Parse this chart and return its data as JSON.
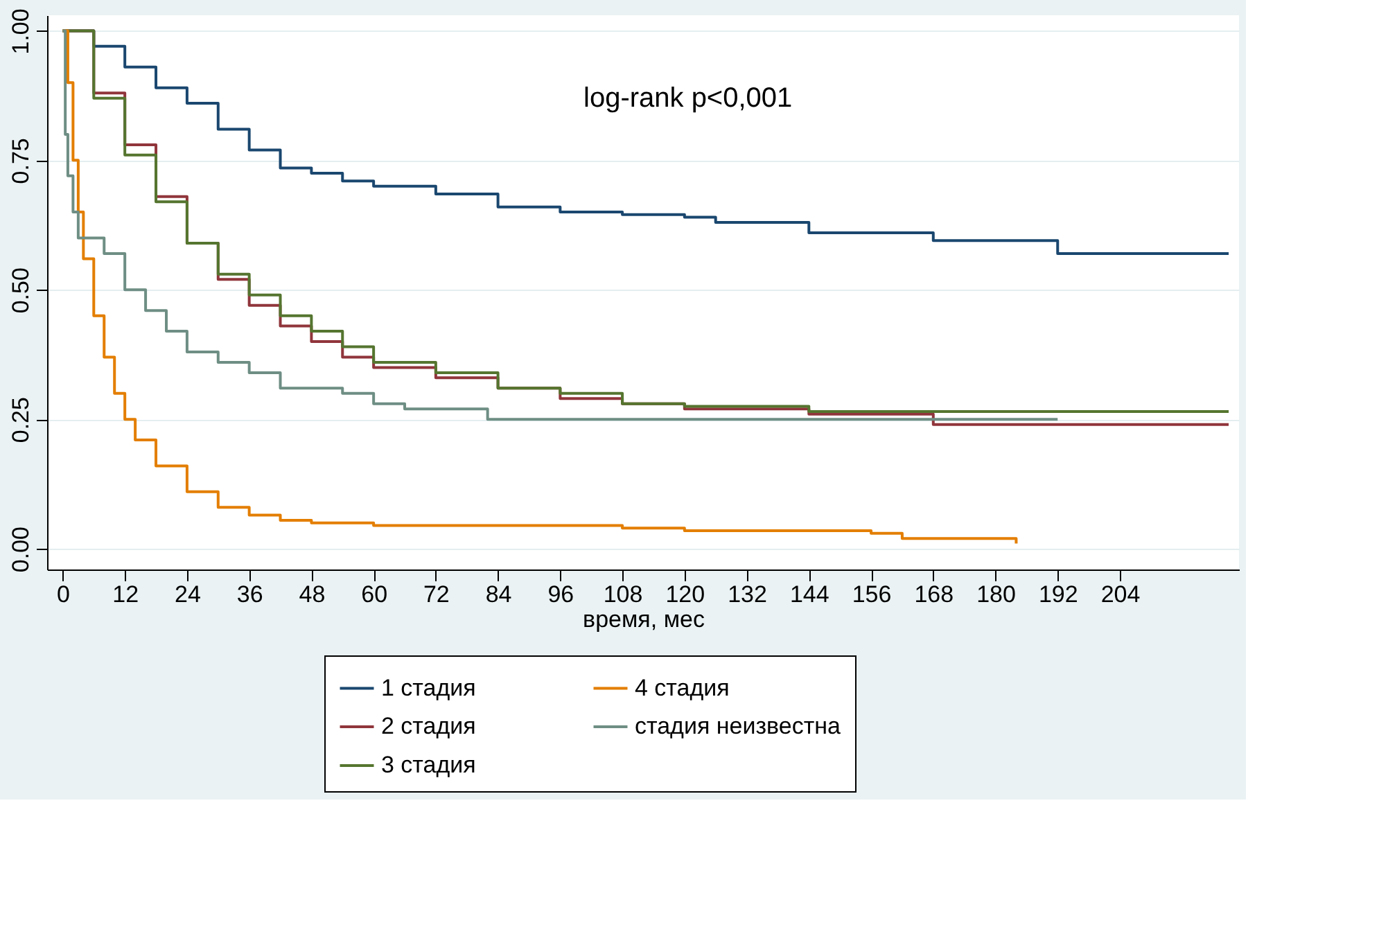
{
  "chart_data": {
    "type": "step",
    "xlabel": "время, мес",
    "xlim": [
      -3,
      227
    ],
    "ylim": [
      -0.04,
      1.03
    ],
    "xticks": [
      0,
      12,
      24,
      36,
      48,
      60,
      72,
      84,
      96,
      108,
      120,
      132,
      144,
      156,
      168,
      180,
      192,
      204
    ],
    "yticks": [
      {
        "value": 0,
        "label": "0.00"
      },
      {
        "value": 0.25,
        "label": "0.25"
      },
      {
        "value": 0.5,
        "label": "0.50"
      },
      {
        "value": 0.75,
        "label": "0.75"
      },
      {
        "value": 1,
        "label": "1.00"
      }
    ],
    "grid": "y",
    "legend": "bottom",
    "line_style": "solid",
    "annotations": [
      "log-rank p<0,001"
    ],
    "series": [
      {
        "name": "1 стадия",
        "color": "#1a476f",
        "x": [
          0,
          6,
          12,
          18,
          24,
          30,
          36,
          42,
          48,
          54,
          60,
          72,
          84,
          96,
          108,
          120,
          126,
          144,
          168,
          192,
          225
        ],
        "values": [
          1.0,
          0.97,
          0.93,
          0.89,
          0.86,
          0.81,
          0.77,
          0.735,
          0.725,
          0.71,
          0.7,
          0.685,
          0.66,
          0.65,
          0.645,
          0.64,
          0.63,
          0.61,
          0.595,
          0.57,
          0.57
        ]
      },
      {
        "name": "2 стадия",
        "color": "#90353b",
        "x": [
          0,
          6,
          12,
          18,
          24,
          30,
          36,
          42,
          48,
          54,
          60,
          72,
          84,
          96,
          108,
          120,
          144,
          168,
          225
        ],
        "values": [
          1.0,
          0.88,
          0.78,
          0.68,
          0.59,
          0.52,
          0.47,
          0.43,
          0.4,
          0.37,
          0.35,
          0.33,
          0.31,
          0.29,
          0.28,
          0.27,
          0.26,
          0.24,
          0.24
        ]
      },
      {
        "name": "3 стадия",
        "color": "#55752f",
        "x": [
          0,
          6,
          12,
          18,
          24,
          30,
          36,
          42,
          48,
          54,
          60,
          72,
          84,
          96,
          108,
          120,
          144,
          225
        ],
        "values": [
          1.0,
          0.87,
          0.76,
          0.67,
          0.59,
          0.53,
          0.49,
          0.45,
          0.42,
          0.39,
          0.36,
          0.34,
          0.31,
          0.3,
          0.28,
          0.275,
          0.265,
          0.265
        ]
      },
      {
        "name": "4 стадия",
        "color": "#e37e00",
        "x": [
          0,
          1,
          2,
          3,
          4,
          6,
          8,
          10,
          12,
          14,
          18,
          24,
          30,
          36,
          42,
          48,
          60,
          84,
          108,
          120,
          156,
          162,
          184
        ],
        "values": [
          1.0,
          0.9,
          0.75,
          0.65,
          0.56,
          0.45,
          0.37,
          0.3,
          0.25,
          0.21,
          0.16,
          0.11,
          0.08,
          0.065,
          0.055,
          0.05,
          0.045,
          0.045,
          0.04,
          0.035,
          0.03,
          0.02,
          0.01
        ]
      },
      {
        "name": "стадия неизвестна",
        "color": "#6e8e84",
        "x": [
          0,
          0.5,
          1,
          2,
          3,
          8,
          12,
          16,
          20,
          24,
          30,
          36,
          42,
          54,
          60,
          66,
          82,
          192
        ],
        "values": [
          1.0,
          0.8,
          0.72,
          0.65,
          0.6,
          0.57,
          0.5,
          0.46,
          0.42,
          0.38,
          0.36,
          0.34,
          0.31,
          0.3,
          0.28,
          0.27,
          0.25,
          0.25
        ]
      }
    ]
  }
}
